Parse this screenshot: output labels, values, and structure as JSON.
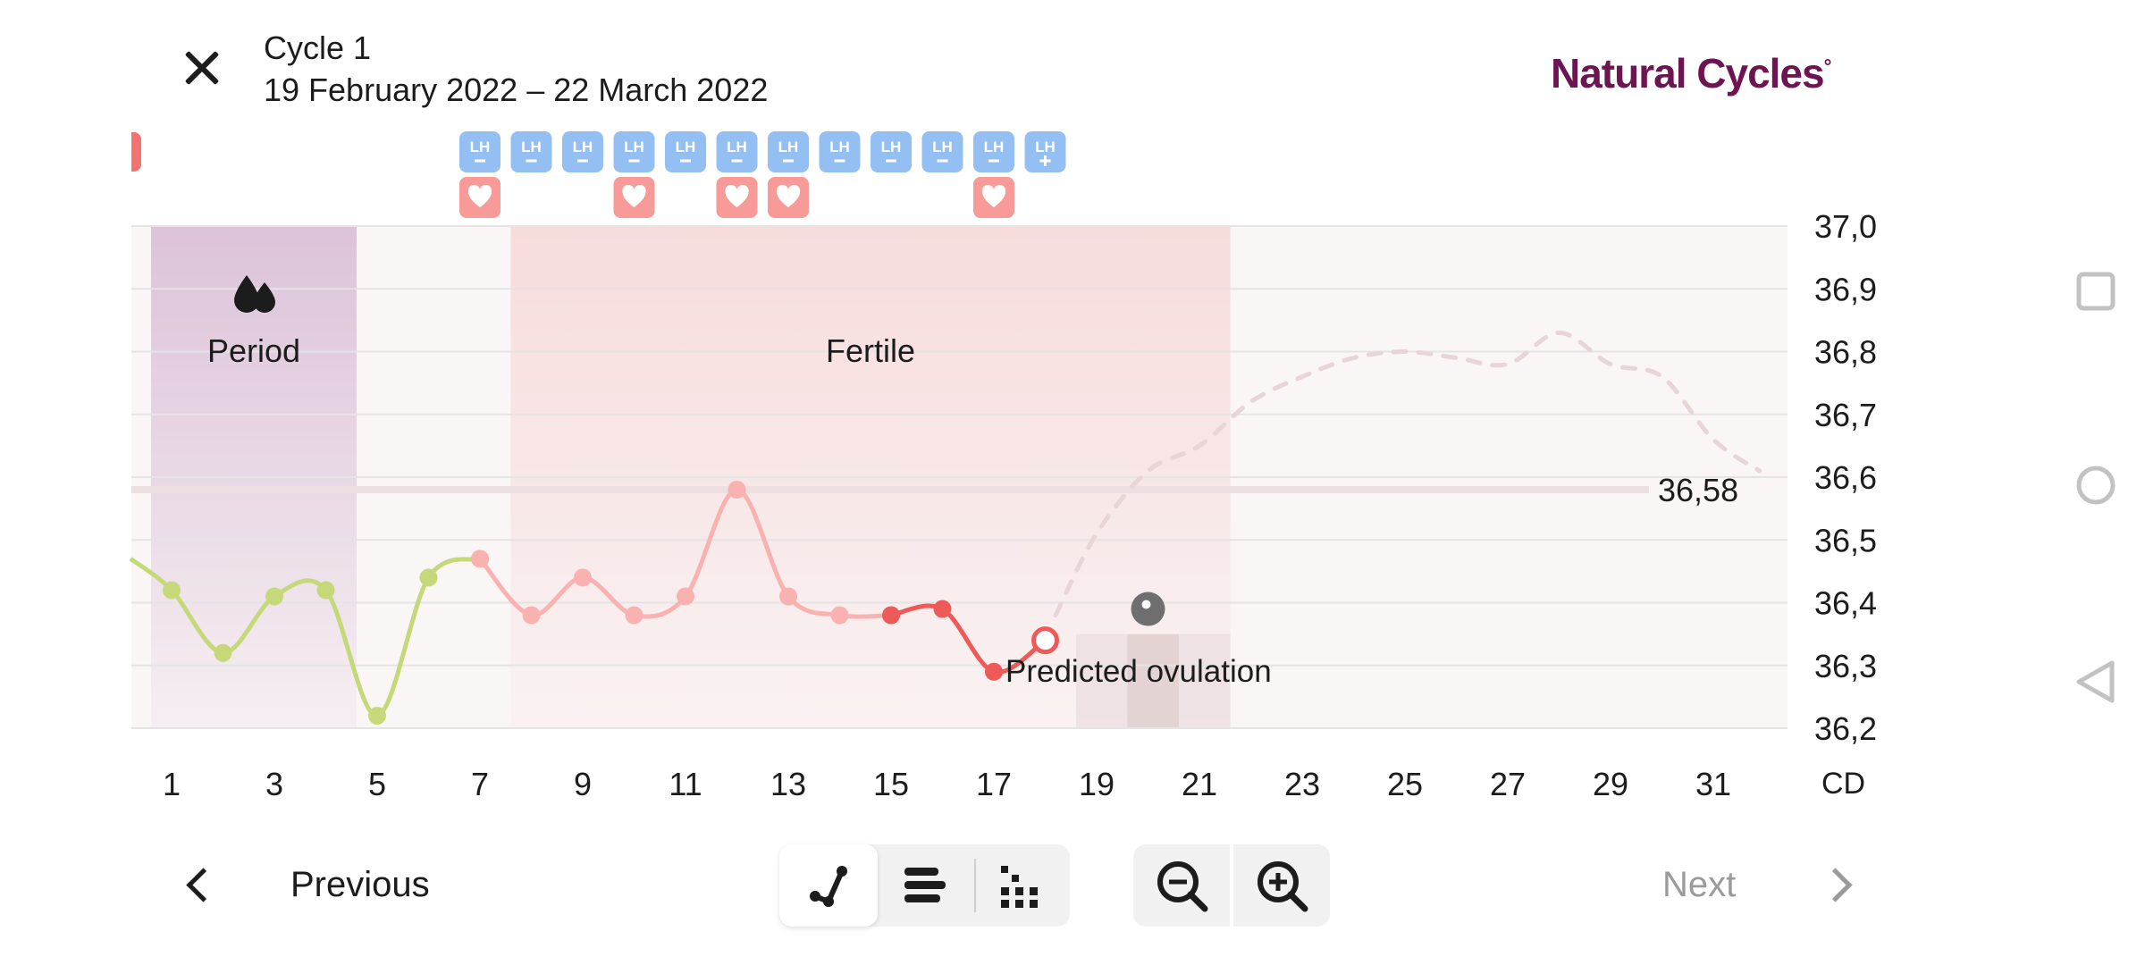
{
  "header": {
    "close_icon": "close-icon",
    "cycle_title": "Cycle 1",
    "cycle_dates": "19 February 2022 – 22 March 2022",
    "brand": "Natural Cycles",
    "brand_mark": "°"
  },
  "chart_data": {
    "type": "line",
    "xlabel": "CD",
    "x_tick_labels": [
      "1",
      "3",
      "5",
      "7",
      "9",
      "11",
      "13",
      "15",
      "17",
      "19",
      "21",
      "23",
      "25",
      "27",
      "29",
      "31"
    ],
    "x_range": [
      0.2,
      32.5
    ],
    "y_tick_labels": [
      "37,0",
      "36,9",
      "36,8",
      "36,7",
      "36,6",
      "36,5",
      "36,4",
      "36,3",
      "36,2"
    ],
    "ylim": [
      36.2,
      37.0
    ],
    "grid": true,
    "coverline": {
      "value": 36.58,
      "label": "36,58"
    },
    "phases": [
      {
        "label": "Period",
        "icon": "period-drops-icon",
        "from_day": 0.6,
        "to_day": 4.6,
        "color": "#dcc3d9"
      },
      {
        "label": "Fertile",
        "from_day": 7.6,
        "to_day": 21.6,
        "color": "#f7dcdc"
      }
    ],
    "ovulation": {
      "label": "Predicted ovulation",
      "icon": "ovulation-egg-icon",
      "from_day": 18.6,
      "to_day": 21.6,
      "marker_day": 20,
      "marker_value": 36.39
    },
    "series": [
      {
        "color": "#c5d97a",
        "points": [
          [
            0.2,
            36.47
          ],
          [
            1,
            36.42
          ],
          [
            2,
            36.32
          ],
          [
            3,
            36.41
          ],
          [
            4,
            36.42
          ],
          [
            5,
            36.22
          ],
          [
            6,
            36.44
          ],
          [
            7,
            36.47
          ]
        ]
      },
      {
        "color": "#f9b2b0",
        "points": [
          [
            7,
            36.47
          ],
          [
            8,
            36.38
          ],
          [
            9,
            36.44
          ],
          [
            10,
            36.38
          ],
          [
            11,
            36.41
          ],
          [
            12,
            36.58
          ],
          [
            13,
            36.41
          ],
          [
            14,
            36.38
          ],
          [
            15,
            36.38
          ]
        ]
      },
      {
        "color": "#ee5a57",
        "points": [
          [
            15,
            36.38
          ],
          [
            16,
            36.39
          ],
          [
            17,
            36.29
          ],
          [
            18,
            36.34
          ]
        ]
      }
    ],
    "predicted": {
      "color": "#e8d6d6",
      "points": [
        [
          18.2,
          36.38
        ],
        [
          19,
          36.51
        ],
        [
          20,
          36.61
        ],
        [
          21,
          36.65
        ],
        [
          22,
          36.72
        ],
        [
          23,
          36.76
        ],
        [
          24,
          36.79
        ],
        [
          25,
          36.8
        ],
        [
          26,
          36.79
        ],
        [
          27,
          36.78
        ],
        [
          28,
          36.83
        ],
        [
          29,
          36.78
        ],
        [
          30,
          36.76
        ],
        [
          31,
          36.66
        ],
        [
          31.9,
          36.61
        ]
      ]
    },
    "open_point": {
      "day": 18,
      "value": 36.34
    },
    "lh_tests": [
      {
        "day": 7,
        "result": "LH-"
      },
      {
        "day": 8,
        "result": "LH-"
      },
      {
        "day": 9,
        "result": "LH-"
      },
      {
        "day": 10,
        "result": "LH-"
      },
      {
        "day": 11,
        "result": "LH-"
      },
      {
        "day": 12,
        "result": "LH-"
      },
      {
        "day": 13,
        "result": "LH-"
      },
      {
        "day": 14,
        "result": "LH-"
      },
      {
        "day": 15,
        "result": "LH-"
      },
      {
        "day": 16,
        "result": "LH-"
      },
      {
        "day": 17,
        "result": "LH-"
      },
      {
        "day": 18,
        "result": "LH+"
      }
    ],
    "intercourse_days": [
      7,
      10,
      12,
      13,
      17
    ],
    "colors": {
      "lh": "#94bff3",
      "heart": "#f79a98",
      "grid": "#e4e4e4",
      "coverline": "#eee0e0"
    }
  },
  "footer": {
    "previous_label": "Previous",
    "next_label": "Next",
    "view_buttons": [
      "graph-view-icon",
      "list-view-icon",
      "dots-view-icon"
    ],
    "zoom_buttons": [
      "zoom-out-icon",
      "zoom-in-icon"
    ]
  },
  "system_nav": [
    "recents-icon",
    "home-icon",
    "back-icon"
  ]
}
